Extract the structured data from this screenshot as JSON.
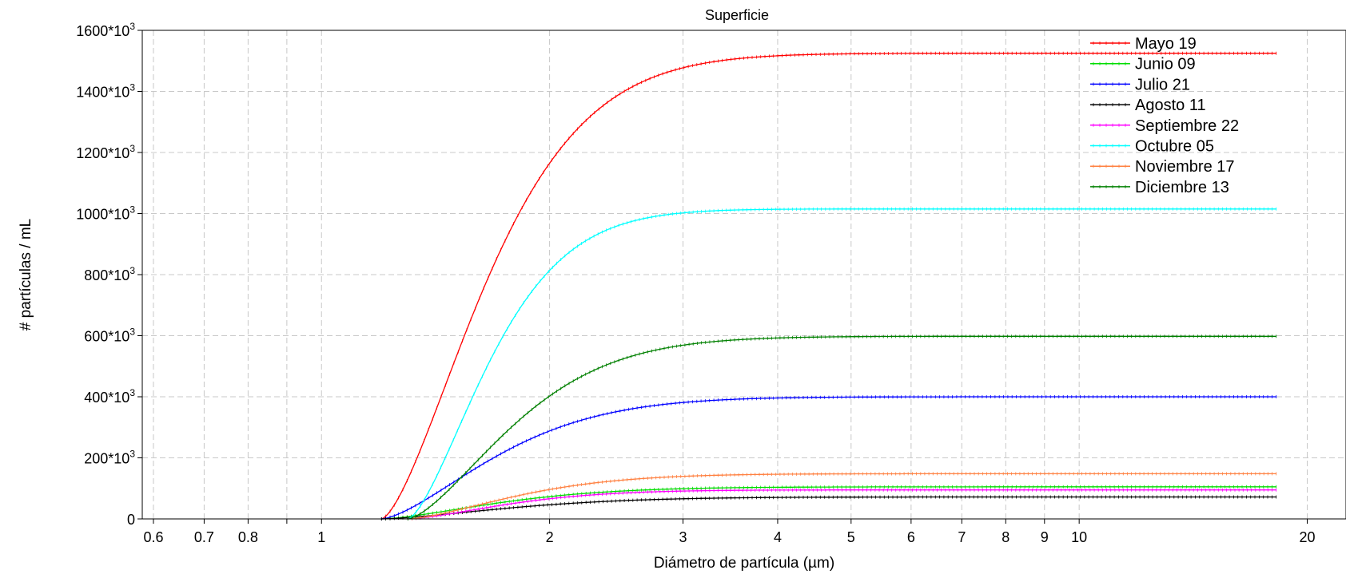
{
  "chart_data": {
    "type": "line",
    "title": "Superficie",
    "xlabel": "Diámetro de partícula (µm)",
    "ylabel": "# partículas / mL",
    "x_scale": "log",
    "xlim": [
      0.58,
      22.5
    ],
    "ylim": [
      0,
      1600000
    ],
    "grid": true,
    "legend_position": "top-right",
    "x_ticks": [
      0.6,
      0.7,
      0.8,
      1,
      2,
      3,
      4,
      5,
      6,
      7,
      8,
      9,
      10,
      20
    ],
    "x_tick_labels": [
      "0.6",
      "0.7",
      "0.8",
      "1",
      "2",
      "3",
      "4",
      "5",
      "6",
      "7",
      "8",
      "9",
      "10",
      "20"
    ],
    "x_minor_ticks": [
      0.9
    ],
    "y_ticks": [
      0,
      200000,
      400000,
      600000,
      800000,
      1000000,
      1200000,
      1400000,
      1600000
    ],
    "y_tick_labels": [
      {
        "base": "0",
        "exp": ""
      },
      {
        "base": "200*10",
        "exp": "3"
      },
      {
        "base": "400*10",
        "exp": "3"
      },
      {
        "base": "600*10",
        "exp": "3"
      },
      {
        "base": "800*10",
        "exp": "3"
      },
      {
        "base": "1000*10",
        "exp": "3"
      },
      {
        "base": "1200*10",
        "exp": "3"
      },
      {
        "base": "1400*10",
        "exp": "3"
      },
      {
        "base": "1600*10",
        "exp": "3"
      }
    ],
    "series": [
      {
        "name": "Mayo 19",
        "color": "#ff0000",
        "start": 1.2,
        "max": 1525000,
        "k": 2.5
      },
      {
        "name": "Junio 09",
        "color": "#00dd00",
        "start": 1.2,
        "max": 105000,
        "k": 2.2
      },
      {
        "name": "Julio 21",
        "color": "#0000ff",
        "start": 1.2,
        "max": 400000,
        "k": 2.3
      },
      {
        "name": "Agosto 11",
        "color": "#000000",
        "start": 1.2,
        "max": 72000,
        "k": 2.0
      },
      {
        "name": "Septiembre 22",
        "color": "#ff00ff",
        "start": 1.3,
        "max": 95000,
        "k": 2.6
      },
      {
        "name": "Octubre 05",
        "color": "#00ffff",
        "start": 1.3,
        "max": 1015000,
        "k": 3.2
      },
      {
        "name": "Noviembre 17",
        "color": "#ff8040",
        "start": 1.3,
        "max": 148000,
        "k": 2.4
      },
      {
        "name": "Diciembre 13",
        "color": "#008000",
        "start": 1.3,
        "max": 598000,
        "k": 2.5
      }
    ]
  }
}
